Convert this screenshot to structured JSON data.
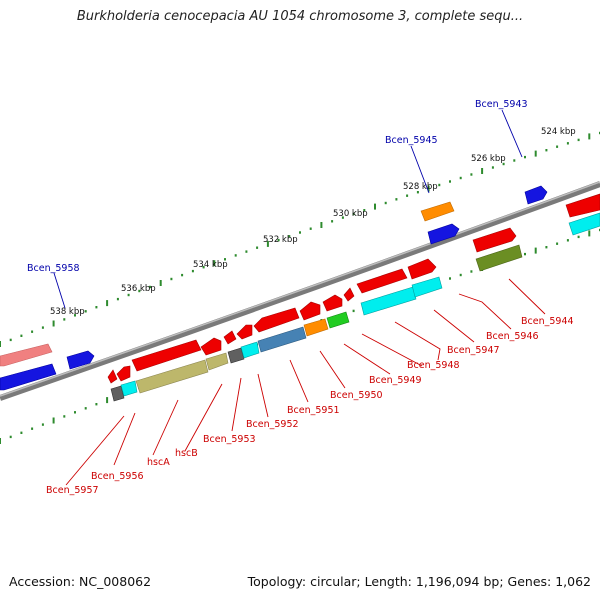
{
  "title": "Burkholderia cenocepacia AU 1054 chromosome 3, complete sequ...",
  "footer": {
    "accession_label": "Accession: NC_008062",
    "summary": "Topology: circular; Length: 1,196,094 bp; Genes: 1,062"
  },
  "colors": {
    "backbone": "#808080",
    "tick": "#2e8b2e",
    "label_red": "#cc0000",
    "label_blue": "#0000aa"
  },
  "scale_labels": [
    "524 kbp",
    "526 kbp",
    "528 kbp",
    "530 kbp",
    "532 kbp",
    "534 kbp",
    "536 kbp",
    "538 kbp"
  ],
  "top_labels": [
    "Bcen_5943",
    "Bcen_5945",
    "Bcen_5958"
  ],
  "bottom_labels": [
    "Bcen_5944",
    "Bcen_5946",
    "Bcen_5947",
    "Bcen_5948",
    "Bcen_5949",
    "Bcen_5950",
    "Bcen_5951",
    "Bcen_5952",
    "Bcen_5953",
    "hscB",
    "hscA",
    "Bcen_5956",
    "Bcen_5957"
  ]
}
